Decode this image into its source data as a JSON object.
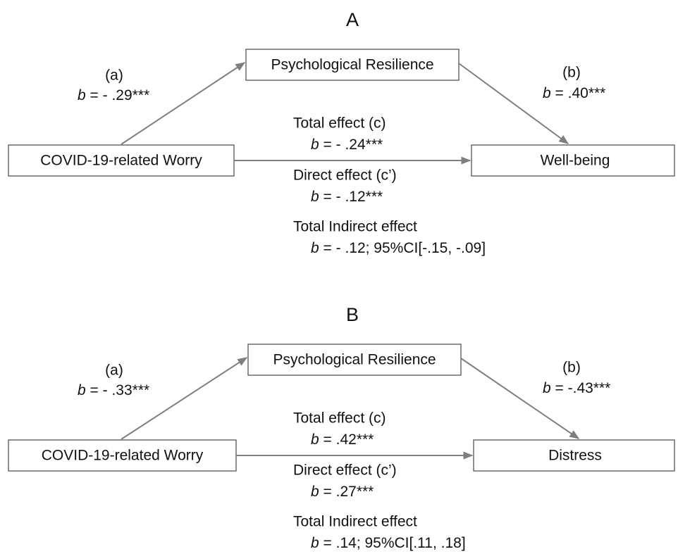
{
  "panels": [
    {
      "title": "A",
      "mediator": "Psychological Resilience",
      "predictor": "COVID-19-related Worry",
      "outcome": "Well-being",
      "path_a": {
        "label": "(a)",
        "coefficient": "b = - .29***"
      },
      "path_b": {
        "label": "(b)",
        "coefficient": "b = .40***"
      },
      "total_effect": {
        "label": "Total effect (c)",
        "coefficient": "b = - .24***"
      },
      "direct_effect": {
        "label": "Direct effect (c’)",
        "coefficient": "b = - .12***"
      },
      "indirect_effect": {
        "label": "Total Indirect effect",
        "coefficient": "b = - .12; 95%CI[-.15, -.09]"
      }
    },
    {
      "title": "B",
      "mediator": "Psychological Resilience",
      "predictor": "COVID-19-related Worry",
      "outcome": "Distress",
      "path_a": {
        "label": "(a)",
        "coefficient": "b = - .33***"
      },
      "path_b": {
        "label": "(b)",
        "coefficient": "b = -.43***"
      },
      "total_effect": {
        "label": "Total effect (c)",
        "coefficient": "b = .42***"
      },
      "direct_effect": {
        "label": "Direct effect (c’)",
        "coefficient": "b = .27***"
      },
      "indirect_effect": {
        "label": "Total Indirect effect",
        "coefficient": "b = .14; 95%CI[.11, .18]"
      }
    }
  ]
}
